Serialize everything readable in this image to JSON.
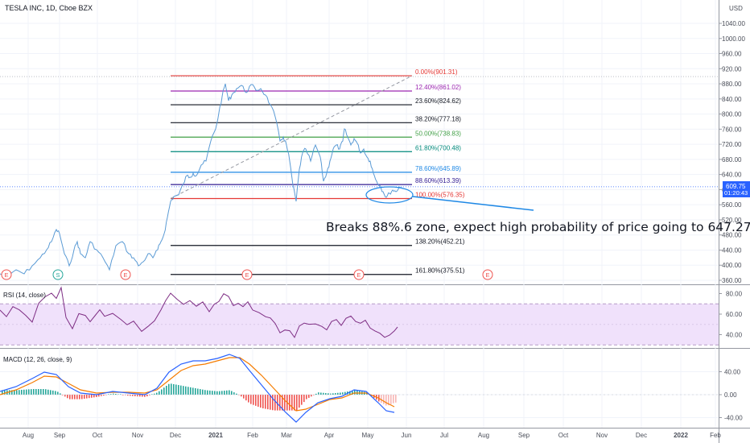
{
  "header": {
    "symbol": "TESLA INC, 1D, Cboe BZX",
    "currency": "USD"
  },
  "last_price": {
    "value": "609.75",
    "countdown": "01:20:43"
  },
  "annotation": "Breaks 88%.6 zone, expect high probability of price going to 647.27",
  "earnings_marker": "E",
  "split_marker": "S",
  "colors": {
    "price_line": "#5b9bd5",
    "rsi_line": "#7e2e84",
    "rsi_band": "#f0e1fb",
    "macd_line": "#2962ff",
    "signal_line": "#f57c00",
    "hist_up": "#26a69a",
    "hist_down": "#ef5350",
    "arrow": "#1e88e5",
    "marker": "#ef5350"
  },
  "chart_data": [
    {
      "type": "line",
      "title": "TESLA INC, 1D, Cboe BZX",
      "x_axis": [
        "Aug",
        "Sep",
        "Oct",
        "Nov",
        "Dec",
        "2021",
        "Feb",
        "Mar",
        "Apr",
        "May",
        "Jun",
        "Jul",
        "Aug",
        "Sep",
        "Oct",
        "Nov",
        "Dec",
        "2022",
        "Feb"
      ],
      "y_ticks": [
        "1040.00",
        "1000.00",
        "960.00",
        "920.00",
        "880.00",
        "840.00",
        "800.00",
        "760.00",
        "720.00",
        "680.00",
        "640.00",
        "600.00",
        "560.00",
        "520.00",
        "480.00",
        "440.00",
        "400.00",
        "360.00"
      ],
      "ylim": [
        350,
        1080
      ],
      "x": [
        "Aug 2020",
        "Sep 2020",
        "Oct 2020",
        "Nov 2020",
        "Dec 2020",
        "Jan 2021",
        "Feb 2021",
        "Mar 2021",
        "Apr 2021",
        "May 2021",
        "May 25 2021"
      ],
      "y": [
        370,
        410,
        430,
        400,
        575,
        760,
        840,
        630,
        700,
        620,
        609.75
      ],
      "fibonacci": [
        {
          "label": "0.00%(901.31)",
          "value": 901.31,
          "color": "#e53935"
        },
        {
          "label": "12.40%(861.02)",
          "value": 861.02,
          "color": "#9c27b0"
        },
        {
          "label": "23.60%(824.62)",
          "value": 824.62,
          "color": "#131722"
        },
        {
          "label": "38.20%(777.18)",
          "value": 777.18,
          "color": "#131722"
        },
        {
          "label": "50.00%(738.83)",
          "value": 738.83,
          "color": "#43a047"
        },
        {
          "label": "61.80%(700.48)",
          "value": 700.48,
          "color": "#00897b"
        },
        {
          "label": "78.60%(645.89)",
          "value": 645.89,
          "color": "#1e88e5"
        },
        {
          "label": "88.60%(613.39)",
          "value": 613.39,
          "color": "#311b92"
        },
        {
          "label": "100.00%(576.35)",
          "value": 576.35,
          "color": "#e53935"
        },
        {
          "label": "138.20%(452.21)",
          "value": 452.21,
          "color": "#131722"
        },
        {
          "label": "161.80%(375.51)",
          "value": 375.51,
          "color": "#131722"
        }
      ]
    },
    {
      "type": "line",
      "title": "RSI (14, close)",
      "y_ticks": [
        "80.00",
        "60.00",
        "40.00"
      ],
      "ylim": [
        25,
        85
      ],
      "band": [
        30,
        70
      ]
    },
    {
      "type": "line",
      "title": "MACD (12, 26, close, 9)",
      "y_ticks": [
        "40.00",
        "0.00",
        "-40.00"
      ],
      "ylim": [
        -55,
        60
      ],
      "series": [
        {
          "values": []
        },
        {
          "values": []
        }
      ]
    }
  ]
}
